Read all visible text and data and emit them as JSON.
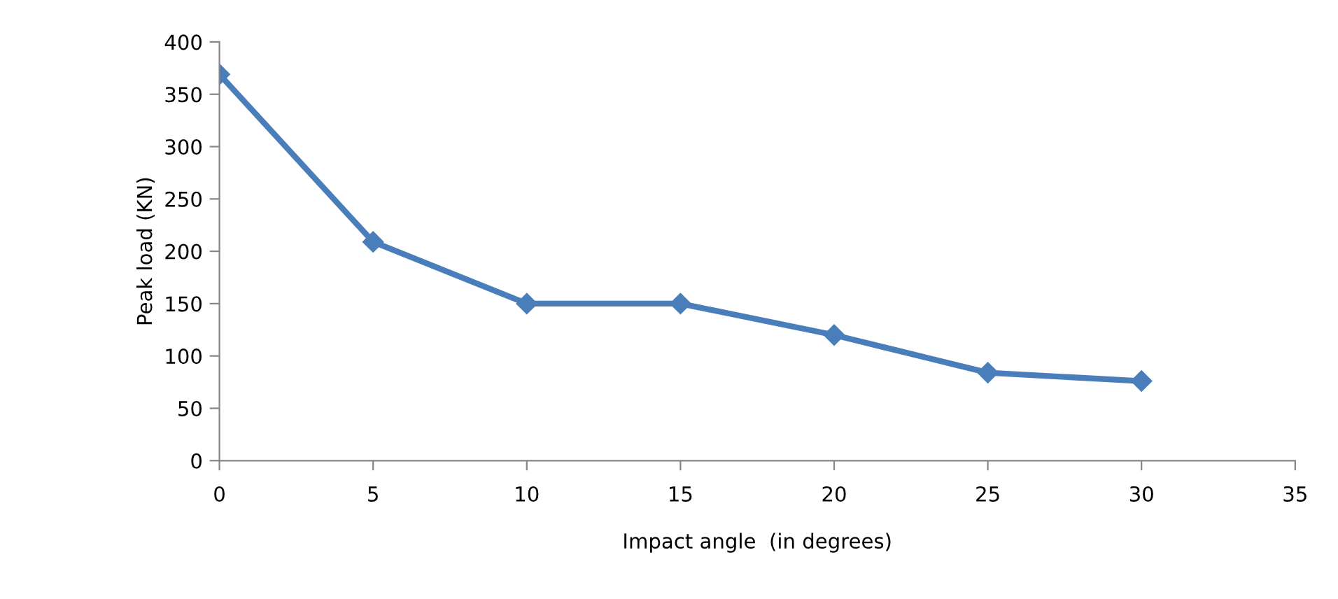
{
  "chart_data": {
    "type": "line",
    "xlabel": "Impact angle  (in degrees)",
    "ylabel": "Peak load (KN)",
    "x": [
      0,
      5,
      10,
      15,
      20,
      25,
      30
    ],
    "series": [
      {
        "color": "#4a7ebb",
        "values": [
          369,
          209,
          150,
          150,
          120,
          84,
          76
        ]
      }
    ],
    "xlim": [
      0,
      35
    ],
    "xticks": [
      0,
      5,
      10,
      15,
      20,
      25,
      30,
      35
    ],
    "ylim": [
      0,
      400
    ],
    "yticks": [
      0,
      50,
      100,
      150,
      200,
      250,
      300,
      350,
      400
    ],
    "marker": "diamond",
    "line_style": "solid",
    "grid": false,
    "legend": false
  }
}
